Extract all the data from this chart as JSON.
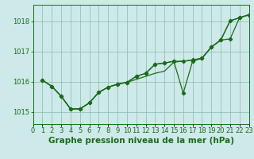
{
  "title": "Graphe pression niveau de la mer (hPa)",
  "background_color": "#cee9e9",
  "plot_bg_color": "#cee9e9",
  "grid_color": "#88bbaa",
  "line_color": "#1a6b1a",
  "xlim": [
    0,
    23
  ],
  "ylim": [
    1014.6,
    1018.55
  ],
  "yticks": [
    1015,
    1016,
    1017,
    1018
  ],
  "xtick_labels": [
    "0",
    "1",
    "2",
    "3",
    "4",
    "5",
    "6",
    "7",
    "8",
    "9",
    "10",
    "11",
    "12",
    "13",
    "14",
    "15",
    "16",
    "17",
    "18",
    "19",
    "20",
    "21",
    "22",
    "23"
  ],
  "x_vals": [
    1,
    2,
    3,
    4,
    5,
    6,
    7,
    8,
    9,
    10,
    11,
    12,
    13,
    14,
    15,
    16,
    17,
    18,
    19,
    20,
    21,
    22,
    23
  ],
  "series0": [
    1016.05,
    1015.85,
    1015.52,
    1015.1,
    1015.1,
    1015.3,
    1015.65,
    1015.82,
    1015.92,
    1015.98,
    1016.08,
    1016.18,
    1016.28,
    1016.35,
    1016.65,
    1016.68,
    1016.72,
    1016.78,
    1017.15,
    1017.38,
    1018.02,
    1018.12,
    1018.22
  ],
  "series1": [
    1016.05,
    1015.85,
    1015.52,
    1015.1,
    1015.1,
    1015.3,
    1015.65,
    1015.82,
    1015.92,
    1015.98,
    1016.18,
    1016.28,
    1016.58,
    1016.62,
    1016.68,
    1016.68,
    1016.72,
    1016.78,
    1017.15,
    1017.38,
    1017.42,
    1018.12,
    1018.22
  ],
  "series2": [
    1016.05,
    1015.85,
    1015.52,
    1015.1,
    1015.1,
    1015.3,
    1015.65,
    1015.82,
    1015.92,
    1015.98,
    1016.18,
    1016.28,
    1016.58,
    1016.62,
    1016.68,
    1015.62,
    1016.68,
    1016.78,
    1017.15,
    1017.38,
    1018.02,
    1018.12,
    1018.22
  ],
  "linewidth": 0.9,
  "marker": "D",
  "marker_size": 2.2,
  "title_fontsize": 7.5,
  "tick_fontsize": 6.0,
  "figsize": [
    3.2,
    2.0
  ],
  "dpi": 100
}
